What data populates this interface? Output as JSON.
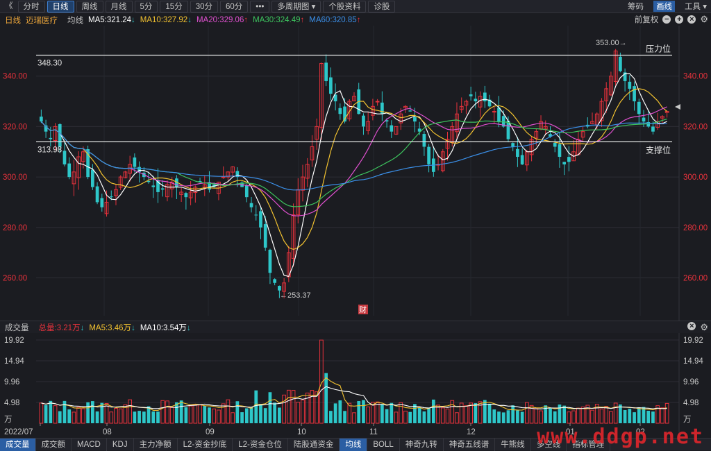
{
  "toolbar": {
    "back": "《",
    "buttons": [
      "分时",
      "日线",
      "周线",
      "月线",
      "5分",
      "15分",
      "30分",
      "60分",
      "•••",
      "多周期图 ▾",
      "个股资料",
      "诊股"
    ],
    "active_index": 1,
    "right": [
      "筹码",
      "画线",
      "工具 ▾"
    ],
    "right_active_index": 1
  },
  "ma_bar": {
    "period": "日线",
    "stock": "迈瑞医疗",
    "avg": "均线",
    "ma5": "MA5:321.24",
    "ma10": "MA10:327.92",
    "ma20": "MA20:329.06",
    "ma30": "MA30:324.49",
    "ma60": "MA60:320.85",
    "right_label": "前复权"
  },
  "colors": {
    "up": "#e8323c",
    "down": "#2ec7c9",
    "ma5": "#ffffff",
    "ma10": "#f2c230",
    "ma20": "#e050d0",
    "ma30": "#3dc45e",
    "ma60": "#3b8fe8"
  },
  "price_axis": {
    "ticks": [
      "340.00",
      "320.00",
      "300.00",
      "280.00",
      "260.00"
    ],
    "values": [
      340,
      320,
      300,
      280,
      260
    ]
  },
  "annotations": {
    "resistance_value": "348.30",
    "resistance_label": "压力位",
    "support_value": "313.98",
    "support_label": "支撑位",
    "high": "353.00→",
    "low": "←253.37",
    "fin_badge": "财"
  },
  "volume_bar": {
    "title": "成交量",
    "total": "总量:3.21万",
    "ma5": "MA5:3.46万",
    "ma10": "MA10:3.54万"
  },
  "volume_axis": {
    "ticks": [
      "19.92",
      "14.94",
      "9.96",
      "4.98",
      "万"
    ],
    "values": [
      19.92,
      14.94,
      9.96,
      4.98,
      0
    ]
  },
  "x_axis": {
    "labels": [
      "2022/07",
      "08",
      "09",
      "10",
      "11",
      "12",
      "01",
      "02"
    ]
  },
  "bottom_tabs": [
    "成交量",
    "成交额",
    "MACD",
    "KDJ",
    "主力净额",
    "L2-资金抄底",
    "L2-资金仓位",
    "陆股通资金",
    "均线",
    "BOLL",
    "神奇九转",
    "神奇五线谱",
    "牛熊线",
    "多空线",
    "指标管理"
  ],
  "bottom_active": [
    0,
    8
  ],
  "watermark": "www.ddgp.net",
  "chart_data": {
    "type": "candlestick",
    "title": "",
    "ylim": [
      245,
      360
    ],
    "closes": [
      322,
      318,
      315,
      320,
      312,
      305,
      300,
      302,
      308,
      310,
      300,
      296,
      290,
      288,
      290,
      292,
      295,
      300,
      302,
      305,
      304,
      302,
      300,
      298,
      296,
      294,
      295,
      297,
      298,
      296,
      294,
      292,
      294,
      296,
      298,
      297,
      295,
      296,
      298,
      300,
      302,
      304,
      300,
      296,
      292,
      288,
      285,
      280,
      272,
      262,
      258,
      255,
      258,
      270,
      285,
      295,
      300,
      305,
      312,
      320,
      345,
      338,
      333,
      330,
      325,
      322,
      330,
      332,
      325,
      320,
      322,
      328,
      330,
      325,
      322,
      318,
      320,
      325,
      328,
      326,
      322,
      318,
      312,
      305,
      302,
      305,
      310,
      315,
      320,
      325,
      328,
      330,
      332,
      330,
      332,
      330,
      328,
      326,
      322,
      320,
      315,
      312,
      308,
      305,
      310,
      315,
      318,
      322,
      320,
      316,
      312,
      308,
      305,
      306,
      310,
      315,
      318,
      320,
      322,
      325,
      330,
      335,
      340,
      350,
      342,
      338,
      335,
      330,
      325,
      322,
      320,
      318,
      322,
      324,
      326
    ]
  }
}
